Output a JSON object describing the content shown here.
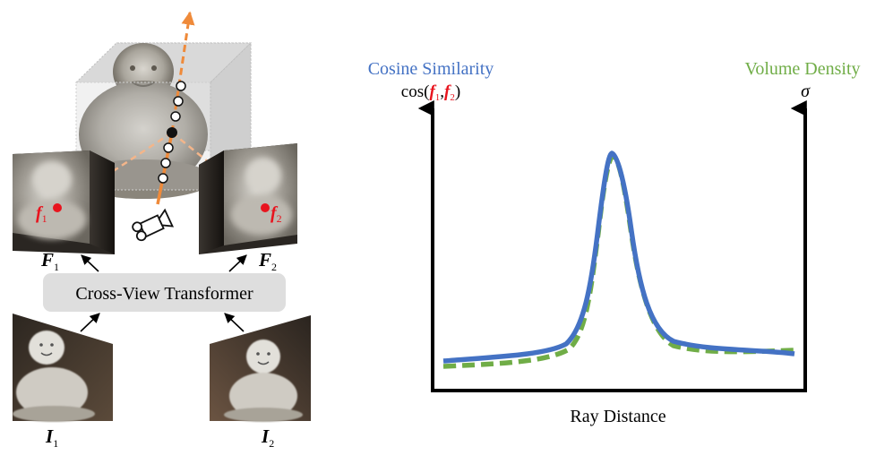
{
  "left_diagram": {
    "transformer_label": "Cross-View Transformer",
    "feature_map_1": {
      "symbol": "F",
      "subscript": "1"
    },
    "feature_map_2": {
      "symbol": "F",
      "subscript": "2"
    },
    "input_image_1": {
      "symbol": "I",
      "subscript": "1"
    },
    "input_image_2": {
      "symbol": "I",
      "subscript": "2"
    },
    "feature_point_1": {
      "symbol": "f",
      "subscript": "1"
    },
    "feature_point_2": {
      "symbol": "f",
      "subscript": "2"
    },
    "ray_sample_count": 7
  },
  "chart_data": {
    "type": "line",
    "xlabel": "Ray Distance",
    "left_axis": {
      "title": "Cosine Similarity",
      "math_label": "cos(",
      "f1": "f",
      "f1_sub": "1",
      "comma": ",",
      "f2": "f",
      "f2_sub": "2",
      "close": ")"
    },
    "right_axis": {
      "title": "Volume Density",
      "math_label": "σ"
    },
    "series": [
      {
        "name": "Cosine Similarity",
        "color": "#4472c4",
        "style": "solid"
      },
      {
        "name": "Volume Density",
        "color": "#70ad47",
        "style": "dashed"
      }
    ]
  },
  "colors": {
    "orange": "#ef8a3a",
    "light_orange": "#f3b58a",
    "red": "#e8141e",
    "blue": "#4472c4",
    "green": "#70ad47",
    "box_gray": "#dedede"
  }
}
